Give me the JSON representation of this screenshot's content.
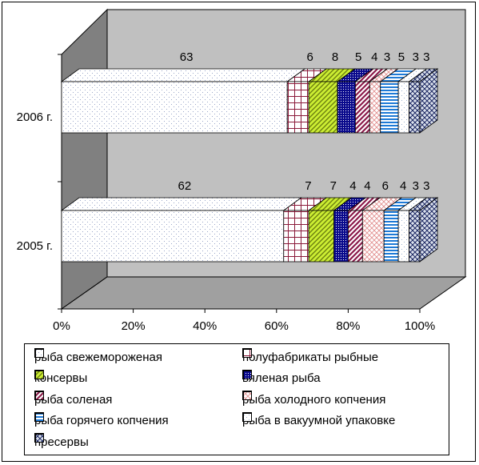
{
  "chart_data": {
    "type": "bar",
    "stacked": "100%",
    "orientation": "horizontal",
    "three_d": true,
    "categories": [
      "2005 г.",
      "2006 г."
    ],
    "series": [
      {
        "name": "рыба свежемороженая",
        "values": [
          62,
          63
        ],
        "pattern": "dots",
        "color": "#ffffff",
        "ink": "#9aa6c8"
      },
      {
        "name": "полуфабрикаты рыбные",
        "values": [
          7,
          6
        ],
        "pattern": "grid",
        "color": "#ffffff",
        "ink": "#8b1a3a"
      },
      {
        "name": "консервы",
        "values": [
          7,
          8
        ],
        "pattern": "diag-right",
        "color": "#ccee33",
        "ink": "#6c7f10"
      },
      {
        "name": "вяленая рыба",
        "values": [
          4,
          5
        ],
        "pattern": "checker",
        "color": "#0a0a8c",
        "ink": "#ffffff"
      },
      {
        "name": "рыба соленая",
        "values": [
          4,
          4
        ],
        "pattern": "diag-wide",
        "color": "#ffffff",
        "ink": "#8b1a4a"
      },
      {
        "name": "рыба холодного копчения",
        "values": [
          6,
          3
        ],
        "pattern": "cross-diag",
        "color": "#ffffff",
        "ink": "#e08a8a"
      },
      {
        "name": "рыба горячего копчения",
        "values": [
          4,
          5
        ],
        "pattern": "hstripes",
        "color": "#ffffff",
        "ink": "#1e7ad6"
      },
      {
        "name": "рыба в вакуумной упаковке",
        "values": [
          3,
          3
        ],
        "pattern": "light-dots",
        "color": "#ffffff",
        "ink": "#9ab0d0"
      },
      {
        "name": "пресервы",
        "values": [
          3,
          3
        ],
        "pattern": "diamond",
        "color": "#dde3ee",
        "ink": "#1a2560"
      }
    ],
    "x_ticks": [
      "0%",
      "20%",
      "40%",
      "60%",
      "80%",
      "100%"
    ],
    "xlim": [
      0,
      100
    ],
    "grid": false,
    "legend_position": "bottom",
    "wall_color": "#c0c0c0",
    "side_wall_color": "#808080",
    "floor_color": "#a0a0a0"
  }
}
